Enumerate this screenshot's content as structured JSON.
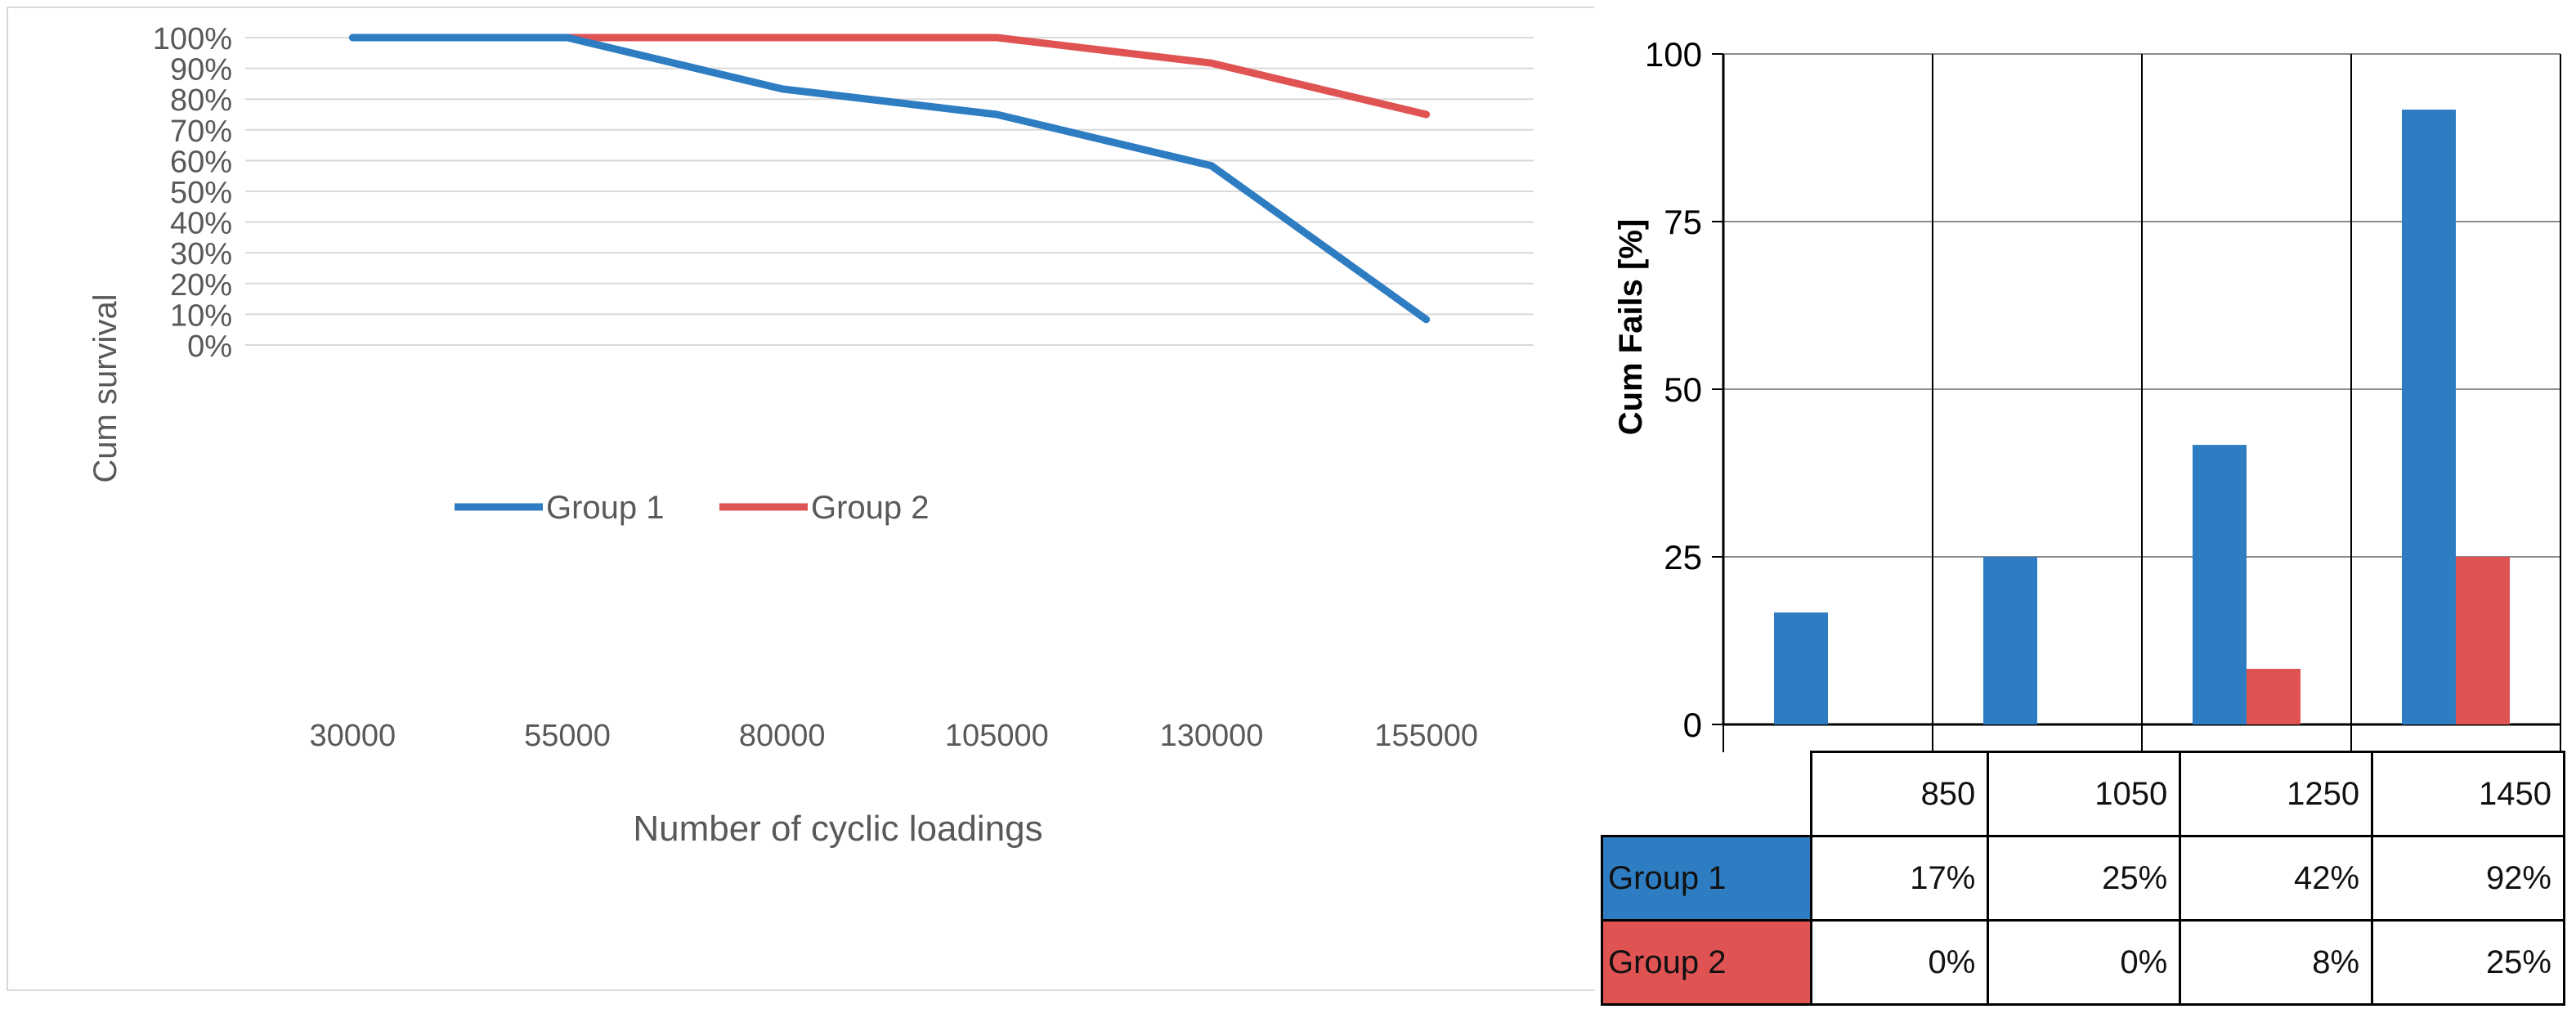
{
  "chart_data": [
    {
      "type": "line",
      "title": "",
      "xlabel": "Number of cyclic loadings",
      "ylabel": "Cum survival",
      "categories": [
        "30000",
        "55000",
        "80000",
        "105000",
        "130000",
        "155000"
      ],
      "y_ticks": [
        "0%",
        "10%",
        "20%",
        "30%",
        "40%",
        "50%",
        "60%",
        "70%",
        "80%",
        "90%",
        "100%"
      ],
      "ylim": [
        0,
        100
      ],
      "grid": true,
      "legend": "center",
      "series": [
        {
          "name": "Group 1",
          "color": "#2e7dc2",
          "values": [
            100,
            100,
            83.3,
            75,
            58.3,
            8.3
          ]
        },
        {
          "name": "Group 2",
          "color": "#e05353",
          "values": [
            100,
            100,
            100,
            100,
            91.7,
            75
          ]
        }
      ]
    },
    {
      "type": "bar",
      "title": "",
      "xlabel": "",
      "ylabel": "Cum  Fails [%]",
      "categories": [
        "850",
        "1050",
        "1250",
        "1450"
      ],
      "y_ticks": [
        "0",
        "25",
        "50",
        "75",
        "100"
      ],
      "ylim": [
        0,
        100
      ],
      "grid": true,
      "series": [
        {
          "name": "Group 1",
          "color": "#2e7dc2",
          "values": [
            16.7,
            25,
            41.7,
            91.7
          ],
          "labels": [
            "17%",
            "25%",
            "42%",
            "92%"
          ]
        },
        {
          "name": "Group 2",
          "color": "#e05353",
          "values": [
            0,
            0,
            8.3,
            25
          ],
          "labels": [
            "0%",
            "0%",
            "8%",
            "25%"
          ]
        }
      ]
    }
  ]
}
